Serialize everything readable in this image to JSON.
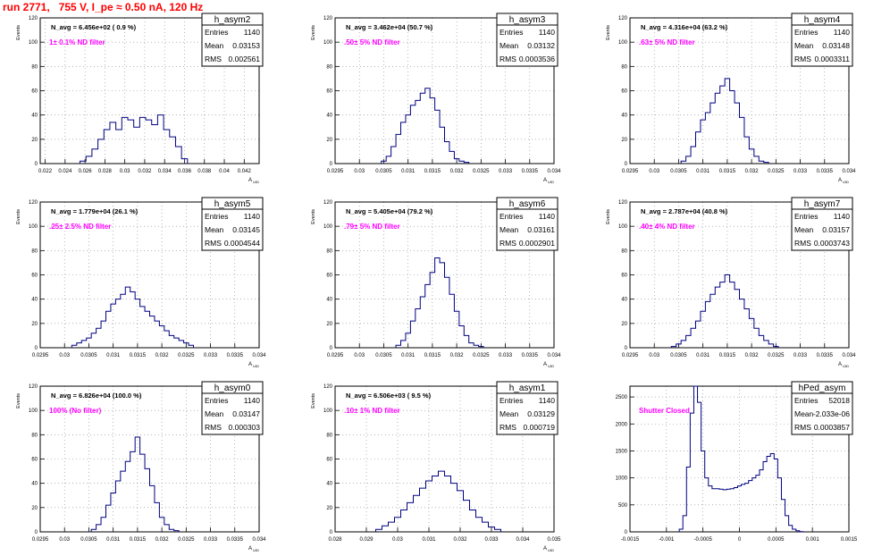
{
  "page": {
    "run_title": "run 2771,   755 V, I_pe ≈ 0.50 nA, 120 Hz"
  },
  "chart_data": [
    {
      "type": "histogram",
      "name": "h_asym2",
      "nav": "N_avg = 6.456e+02 ( 0.9 %)",
      "note": "1± 0.1% ND filter",
      "note_color": "#ff00ff",
      "stats": [
        [
          "Entries",
          "1140"
        ],
        [
          "Mean",
          "0.03153"
        ],
        [
          "RMS",
          "0.002561"
        ]
      ],
      "ylabel": "Events",
      "xlabel": "A_UID",
      "xlim": [
        0.0215,
        0.0435
      ],
      "ylim": [
        0,
        120
      ],
      "xticks": [
        "0.022",
        "0.024",
        "0.026",
        "0.028",
        "0.03",
        "0.032",
        "0.034",
        "0.036",
        "0.038",
        "0.04",
        "0.042"
      ],
      "xtick_values": [
        0.022,
        0.024,
        0.026,
        0.028,
        0.03,
        0.032,
        0.034,
        0.036,
        0.038,
        0.04,
        0.042
      ],
      "yticks": [
        0,
        20,
        40,
        60,
        80,
        100,
        120
      ],
      "x": [
        0.0258,
        0.0264,
        0.027,
        0.0276,
        0.0282,
        0.0288,
        0.0294,
        0.03,
        0.0306,
        0.0312,
        0.0318,
        0.0324,
        0.033,
        0.0336,
        0.0342,
        0.0348,
        0.0354,
        0.036
      ],
      "y": [
        2,
        6,
        12,
        20,
        28,
        34,
        28,
        38,
        36,
        30,
        38,
        36,
        32,
        40,
        28,
        22,
        14,
        4
      ]
    },
    {
      "type": "histogram",
      "name": "h_asym3",
      "nav": "N_avg = 3.462e+04 (50.7 %)",
      "note": ".50± 5% ND filter",
      "note_color": "#ff00ff",
      "stats": [
        [
          "Entries",
          "1140"
        ],
        [
          "Mean",
          "0.03132"
        ],
        [
          "RMS",
          "0.0003536"
        ]
      ],
      "ylabel": "Events",
      "xlabel": "A_UID",
      "xlim": [
        0.0295,
        0.034
      ],
      "ylim": [
        0,
        120
      ],
      "xticks": [
        "0.0295",
        "0.03",
        "0.0305",
        "0.031",
        "0.0315",
        "0.032",
        "0.0325",
        "0.033",
        "0.0335",
        "0.034"
      ],
      "xtick_values": [
        0.0295,
        0.03,
        0.0305,
        0.031,
        0.0315,
        0.032,
        0.0325,
        0.033,
        0.0335,
        0.034
      ],
      "yticks": [
        0,
        20,
        40,
        60,
        80,
        100,
        120
      ],
      "x": [
        0.0305,
        0.0306,
        0.0307,
        0.0308,
        0.0309,
        0.031,
        0.0311,
        0.0312,
        0.0313,
        0.0314,
        0.0315,
        0.0316,
        0.0317,
        0.0318,
        0.0319,
        0.032,
        0.0321,
        0.0322
      ],
      "y": [
        2,
        6,
        14,
        24,
        34,
        40,
        48,
        52,
        58,
        62,
        54,
        44,
        30,
        18,
        10,
        4,
        2,
        1
      ]
    },
    {
      "type": "histogram",
      "name": "h_asym4",
      "nav": "N_avg = 4.316e+04 (63.2 %)",
      "note": ".63± 5% ND filter",
      "note_color": "#ff00ff",
      "stats": [
        [
          "Entries",
          "1140"
        ],
        [
          "Mean",
          "0.03148"
        ],
        [
          "RMS",
          "0.0003311"
        ]
      ],
      "ylabel": "Events",
      "xlabel": "A_UID",
      "xlim": [
        0.0295,
        0.034
      ],
      "ylim": [
        0,
        120
      ],
      "xticks": [
        "0.0295",
        "0.03",
        "0.0305",
        "0.031",
        "0.0315",
        "0.032",
        "0.0325",
        "0.033",
        "0.0335",
        "0.034"
      ],
      "xtick_values": [
        0.0295,
        0.03,
        0.0305,
        0.031,
        0.0315,
        0.032,
        0.0325,
        0.033,
        0.0335,
        0.034
      ],
      "yticks": [
        0,
        20,
        40,
        60,
        80,
        100,
        120
      ],
      "x": [
        0.0306,
        0.0307,
        0.0308,
        0.0309,
        0.031,
        0.0311,
        0.0312,
        0.0313,
        0.0314,
        0.0315,
        0.0316,
        0.0317,
        0.0318,
        0.0319,
        0.032,
        0.0321,
        0.0322,
        0.0323
      ],
      "y": [
        2,
        6,
        14,
        26,
        36,
        42,
        50,
        58,
        64,
        70,
        60,
        50,
        38,
        22,
        12,
        6,
        2,
        1
      ]
    },
    {
      "type": "histogram",
      "name": "h_asym5",
      "nav": "N_avg = 1.779e+04 (26.1 %)",
      "note": ".25± 2.5% ND filter",
      "note_color": "#ff00ff",
      "stats": [
        [
          "Entries",
          "1140"
        ],
        [
          "Mean",
          "0.03145"
        ],
        [
          "RMS",
          "0.0004544"
        ]
      ],
      "ylabel": "Events",
      "xlabel": "A_UID",
      "xlim": [
        0.0295,
        0.034
      ],
      "ylim": [
        0,
        120
      ],
      "xticks": [
        "0.0295",
        "0.03",
        "0.0305",
        "0.031",
        "0.0315",
        "0.032",
        "0.0325",
        "0.033",
        "0.0335",
        "0.034"
      ],
      "xtick_values": [
        0.0295,
        0.03,
        0.0305,
        0.031,
        0.0315,
        0.032,
        0.0325,
        0.033,
        0.0335,
        0.034
      ],
      "yticks": [
        0,
        20,
        40,
        60,
        80,
        100,
        120
      ],
      "x": [
        0.0302,
        0.0303,
        0.0304,
        0.0305,
        0.0306,
        0.0307,
        0.0308,
        0.0309,
        0.031,
        0.0311,
        0.0312,
        0.0313,
        0.0314,
        0.0315,
        0.0316,
        0.0317,
        0.0318,
        0.0319,
        0.032,
        0.0321,
        0.0322,
        0.0323,
        0.0324,
        0.0325,
        0.0326
      ],
      "y": [
        2,
        4,
        6,
        8,
        12,
        16,
        22,
        30,
        36,
        40,
        44,
        50,
        46,
        40,
        34,
        30,
        26,
        22,
        18,
        14,
        10,
        8,
        6,
        4,
        2
      ]
    },
    {
      "type": "histogram",
      "name": "h_asym6",
      "nav": "N_avg = 5.405e+04 (79.2 %)",
      "note": ".79± 5% ND filter",
      "note_color": "#ff00ff",
      "stats": [
        [
          "Entries",
          "1140"
        ],
        [
          "Mean",
          "0.03161"
        ],
        [
          "RMS",
          "0.0002901"
        ]
      ],
      "ylabel": "Events",
      "xlabel": "A_UID",
      "xlim": [
        0.0295,
        0.034
      ],
      "ylim": [
        0,
        120
      ],
      "xticks": [
        "0.0295",
        "0.03",
        "0.0305",
        "0.031",
        "0.0315",
        "0.032",
        "0.0325",
        "0.033",
        "0.0335",
        "0.034"
      ],
      "xtick_values": [
        0.0295,
        0.03,
        0.0305,
        0.031,
        0.0315,
        0.032,
        0.0325,
        0.033,
        0.0335,
        0.034
      ],
      "yticks": [
        0,
        20,
        40,
        60,
        80,
        100,
        120
      ],
      "x": [
        0.0308,
        0.0309,
        0.031,
        0.0311,
        0.0312,
        0.0313,
        0.0314,
        0.0315,
        0.0316,
        0.0317,
        0.0318,
        0.0319,
        0.032,
        0.0321,
        0.0322,
        0.0323,
        0.0324,
        0.0325
      ],
      "y": [
        2,
        6,
        12,
        22,
        32,
        42,
        52,
        62,
        74,
        70,
        58,
        44,
        30,
        18,
        10,
        4,
        2,
        1
      ]
    },
    {
      "type": "histogram",
      "name": "h_asym7",
      "nav": "N_avg = 2.787e+04 (40.8 %)",
      "note": ".40± 4% ND filter",
      "note_color": "#ff00ff",
      "stats": [
        [
          "Entries",
          "1140"
        ],
        [
          "Mean",
          "0.03157"
        ],
        [
          "RMS",
          "0.0003743"
        ]
      ],
      "ylabel": "Events",
      "xlabel": "A_UID",
      "xlim": [
        0.0295,
        0.034
      ],
      "ylim": [
        0,
        120
      ],
      "xticks": [
        "0.0295",
        "0.03",
        "0.0305",
        "0.031",
        "0.0315",
        "0.032",
        "0.0325",
        "0.033",
        "0.0335",
        "0.034"
      ],
      "xtick_values": [
        0.0295,
        0.03,
        0.0305,
        0.031,
        0.0315,
        0.032,
        0.0325,
        0.033,
        0.0335,
        0.034
      ],
      "yticks": [
        0,
        20,
        40,
        60,
        80,
        100,
        120
      ],
      "x": [
        0.0304,
        0.0305,
        0.0306,
        0.0307,
        0.0308,
        0.0309,
        0.031,
        0.0311,
        0.0312,
        0.0313,
        0.0314,
        0.0315,
        0.0316,
        0.0317,
        0.0318,
        0.0319,
        0.032,
        0.0321,
        0.0322,
        0.0323,
        0.0324,
        0.0325
      ],
      "y": [
        1,
        3,
        6,
        10,
        16,
        22,
        30,
        38,
        44,
        50,
        54,
        60,
        54,
        48,
        40,
        32,
        24,
        16,
        10,
        6,
        3,
        1
      ]
    },
    {
      "type": "histogram",
      "name": "h_asym0",
      "nav": "N_avg = 6.826e+04 (100.0 %)",
      "note": "100% (No filter)",
      "note_color": "#ff00ff",
      "stats": [
        [
          "Entries",
          "1140"
        ],
        [
          "Mean",
          "0.03147"
        ],
        [
          "RMS",
          "0.000303"
        ]
      ],
      "ylabel": "Events",
      "xlabel": "A_UID",
      "xlim": [
        0.0295,
        0.034
      ],
      "ylim": [
        0,
        120
      ],
      "xticks": [
        "0.0295",
        "0.03",
        "0.0305",
        "0.031",
        "0.0315",
        "0.032",
        "0.0325",
        "0.033",
        "0.0335",
        "0.034"
      ],
      "xtick_values": [
        0.0295,
        0.03,
        0.0305,
        0.031,
        0.0315,
        0.032,
        0.0325,
        0.033,
        0.0335,
        0.034
      ],
      "yticks": [
        0,
        20,
        40,
        60,
        80,
        100,
        120
      ],
      "x": [
        0.0306,
        0.0307,
        0.0308,
        0.0309,
        0.031,
        0.0311,
        0.0312,
        0.0313,
        0.0314,
        0.0315,
        0.0316,
        0.0317,
        0.0318,
        0.0319,
        0.032,
        0.0321,
        0.0322,
        0.0323
      ],
      "y": [
        2,
        6,
        12,
        22,
        32,
        42,
        50,
        58,
        66,
        78,
        64,
        52,
        38,
        24,
        12,
        6,
        2,
        1
      ]
    },
    {
      "type": "histogram",
      "name": "h_asym1",
      "nav": "N_avg = 6.506e+03 ( 9.5 %)",
      "note": ".10± 1% ND filter",
      "note_color": "#ff00ff",
      "stats": [
        [
          "Entries",
          "1140"
        ],
        [
          "Mean",
          "0.03129"
        ],
        [
          "RMS",
          "0.000719"
        ]
      ],
      "ylabel": "Events",
      "xlabel": "A_UID",
      "xlim": [
        0.028,
        0.035
      ],
      "ylim": [
        0,
        120
      ],
      "xticks": [
        "0.028",
        "0.029",
        "0.03",
        "0.031",
        "0.032",
        "0.033",
        "0.034",
        "0.035"
      ],
      "xtick_values": [
        0.028,
        0.029,
        0.03,
        0.031,
        0.032,
        0.033,
        0.034,
        0.035
      ],
      "yticks": [
        0,
        20,
        40,
        60,
        80,
        100,
        120
      ],
      "x": [
        0.0294,
        0.0296,
        0.0298,
        0.03,
        0.0302,
        0.0304,
        0.0306,
        0.0308,
        0.031,
        0.0312,
        0.0314,
        0.0316,
        0.0318,
        0.032,
        0.0322,
        0.0324,
        0.0326,
        0.0328,
        0.033,
        0.0332
      ],
      "y": [
        2,
        5,
        8,
        12,
        18,
        24,
        30,
        36,
        42,
        46,
        50,
        46,
        40,
        34,
        26,
        18,
        12,
        8,
        4,
        2
      ]
    },
    {
      "type": "histogram",
      "name": "hPed_asym",
      "nav": "",
      "note": "Shutter Closed",
      "note_color": "#ff00ff",
      "stats": [
        [
          "Entries",
          "52018"
        ],
        [
          "Mean",
          "-2.033e-06"
        ],
        [
          "RMS",
          "0.0003857"
        ]
      ],
      "ylabel": "",
      "xlabel": "",
      "xlim": [
        -0.0015,
        0.0015
      ],
      "ylim": [
        0,
        2700
      ],
      "xticks": [
        "-0.0015",
        "-0.001",
        "-0.0005",
        "0",
        "0.0005",
        "0.001",
        "0.0015"
      ],
      "xtick_values": [
        -0.0015,
        -0.001,
        -0.0005,
        0,
        0.0005,
        0.001,
        0.0015
      ],
      "yticks": [
        0,
        500,
        1000,
        1500,
        2000,
        2500
      ],
      "x": [
        -0.0008,
        -0.00075,
        -0.0007,
        -0.00065,
        -0.0006,
        -0.00055,
        -0.0005,
        -0.00045,
        -0.0004,
        -0.00035,
        -0.0003,
        -0.00025,
        -0.0002,
        -0.00015,
        -0.0001,
        -5e-05,
        0,
        5e-05,
        0.0001,
        0.00015,
        0.0002,
        0.00025,
        0.0003,
        0.00035,
        0.0004,
        0.00045,
        0.0005,
        0.00055,
        0.0006,
        0.00065,
        0.0007,
        0.00075,
        0.0008,
        0.00085
      ],
      "y": [
        50,
        300,
        1200,
        2200,
        2700,
        2400,
        1500,
        1000,
        850,
        800,
        800,
        790,
        780,
        790,
        800,
        820,
        850,
        880,
        900,
        950,
        1000,
        1050,
        1150,
        1300,
        1400,
        1450,
        1350,
        1000,
        600,
        300,
        120,
        50,
        20,
        5
      ]
    }
  ]
}
